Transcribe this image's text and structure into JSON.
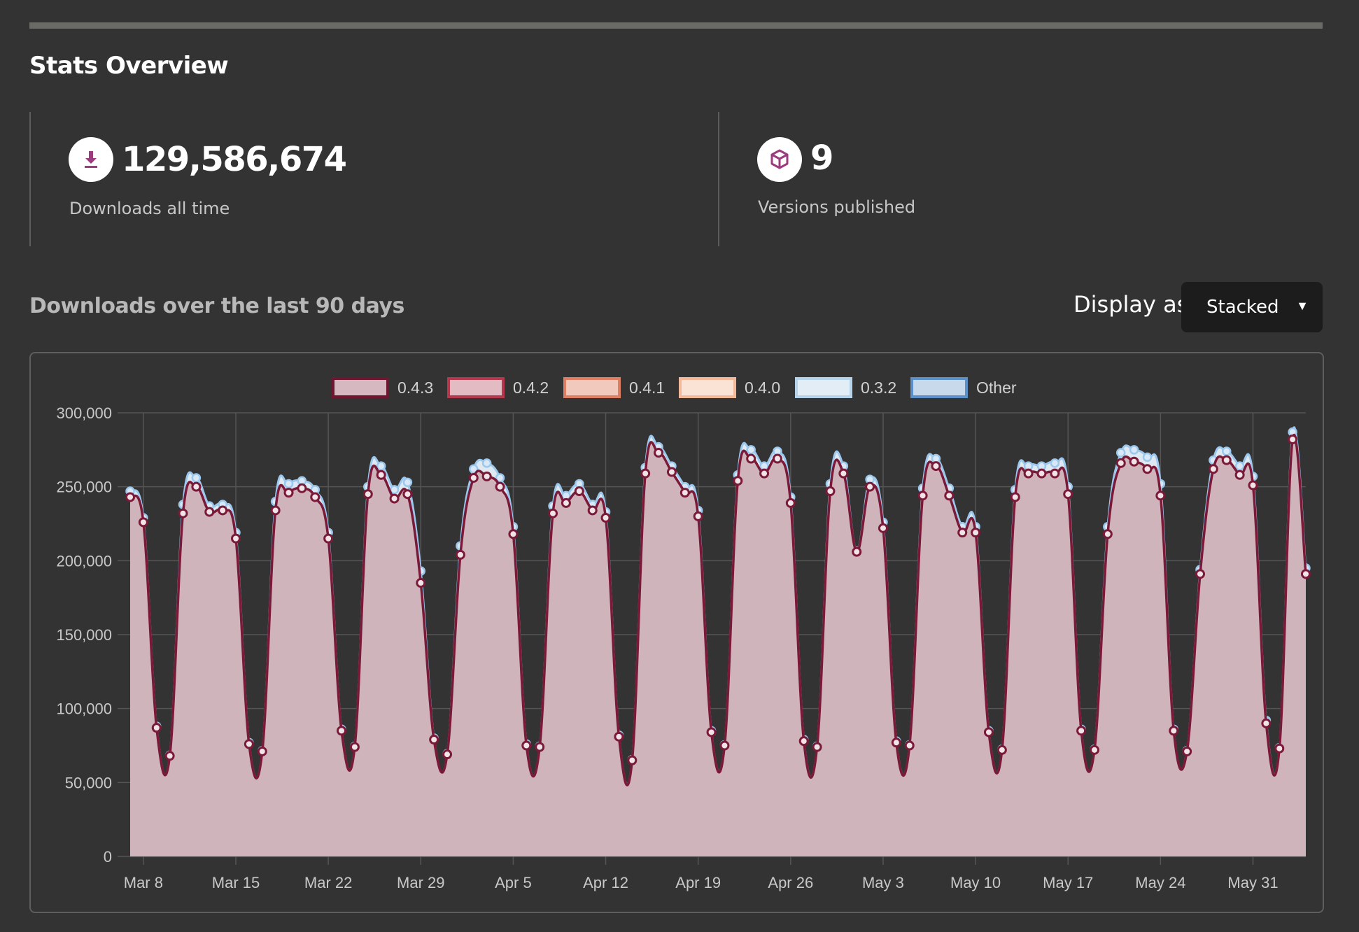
{
  "header": {
    "title": "Stats Overview"
  },
  "stats": {
    "downloads": {
      "icon": "download-icon",
      "value": "129,586,674",
      "label": "Downloads all time"
    },
    "versions": {
      "icon": "package-box-icon",
      "value": "9",
      "label": "Versions published"
    }
  },
  "chart_section": {
    "heading": "Downloads over the last 90 days",
    "display_as_label": "Display as",
    "display_as_value": "Stacked"
  },
  "colors": {
    "page_background": "#333333",
    "icon_accent": "#9c3b7e",
    "series_line": "#7a1a38",
    "area_fill": "#cfb4bb",
    "light_blue_edge": "#9cc8ee"
  },
  "chart_data": {
    "type": "area",
    "stacked": true,
    "title": "",
    "xlabel": "",
    "ylabel": "",
    "ylim": [
      0,
      300000
    ],
    "yticks": [
      "0",
      "50,000",
      "100,000",
      "150,000",
      "200,000",
      "250,000",
      "300,000"
    ],
    "xticks": [
      "Mar 8",
      "Mar 15",
      "Mar 22",
      "Mar 29",
      "Apr 5",
      "Apr 12",
      "Apr 19",
      "Apr 26",
      "May 3",
      "May 10",
      "May 17",
      "May 24",
      "May 31"
    ],
    "xrange": [
      "Mar 7",
      "Jun 4"
    ],
    "grid": true,
    "legend_position": "top",
    "legend": [
      {
        "name": "0.4.3",
        "fill": "#d6b9c0",
        "stroke": "#6f1630"
      },
      {
        "name": "0.4.2",
        "fill": "#e3bcc3",
        "stroke": "#b6384f"
      },
      {
        "name": "0.4.1",
        "fill": "#f1c9bd",
        "stroke": "#e07e64"
      },
      {
        "name": "0.4.0",
        "fill": "#fae2d5",
        "stroke": "#f3b99a"
      },
      {
        "name": "0.3.2",
        "fill": "#e2edf5",
        "stroke": "#b5d3ea"
      },
      {
        "name": "Other",
        "fill": "#c8d9ec",
        "stroke": "#5b91c8"
      }
    ],
    "series": [
      {
        "name": "0.4.3",
        "values": [
          243000,
          226000,
          87000,
          68000,
          232000,
          250000,
          233000,
          234000,
          215000,
          76000,
          71000,
          234000,
          246000,
          249000,
          243000,
          215000,
          85000,
          74000,
          245000,
          258000,
          242000,
          245000,
          185000,
          79000,
          69000,
          204000,
          256000,
          257000,
          250000,
          218000,
          75000,
          74000,
          232000,
          239000,
          247000,
          234000,
          229000,
          81000,
          65000,
          259000,
          273000,
          260000,
          246000,
          230000,
          84000,
          75000,
          254000,
          269000,
          259000,
          269000,
          239000,
          78000,
          74000,
          247000,
          259000,
          206000,
          250000,
          222000,
          77000,
          75000,
          244000,
          264000,
          244000,
          219000,
          219000,
          84000,
          72000,
          243000,
          259000,
          259000,
          259000,
          245000,
          85000,
          72000,
          218000,
          266000,
          267000,
          262000,
          244000,
          85000,
          71000,
          191000,
          262000,
          268000,
          258000,
          251000,
          90000,
          73000,
          282000,
          191000
        ]
      },
      {
        "name": "0.3.2 + Other",
        "values": [
          4000,
          3000,
          1000,
          500,
          6000,
          6000,
          4000,
          4000,
          4000,
          1000,
          500,
          6000,
          6000,
          5000,
          5000,
          4000,
          1000,
          500,
          5000,
          6000,
          6000,
          8000,
          8000,
          1000,
          500,
          6000,
          6000,
          9000,
          6000,
          5000,
          1000,
          500,
          5000,
          5000,
          5000,
          4000,
          4000,
          1000,
          500,
          4000,
          4000,
          4000,
          4000,
          4000,
          1000,
          500,
          4000,
          6000,
          5000,
          5000,
          4000,
          1000,
          500,
          5000,
          5000,
          500,
          5000,
          4000,
          1000,
          500,
          5000,
          5000,
          5000,
          4000,
          4000,
          1000,
          500,
          5000,
          5000,
          5000,
          7000,
          5000,
          1000,
          500,
          5000,
          7000,
          8000,
          8000,
          8000,
          1000,
          500,
          3000,
          6000,
          6000,
          6000,
          6000,
          2000,
          500,
          5000,
          4000
        ]
      }
    ]
  }
}
